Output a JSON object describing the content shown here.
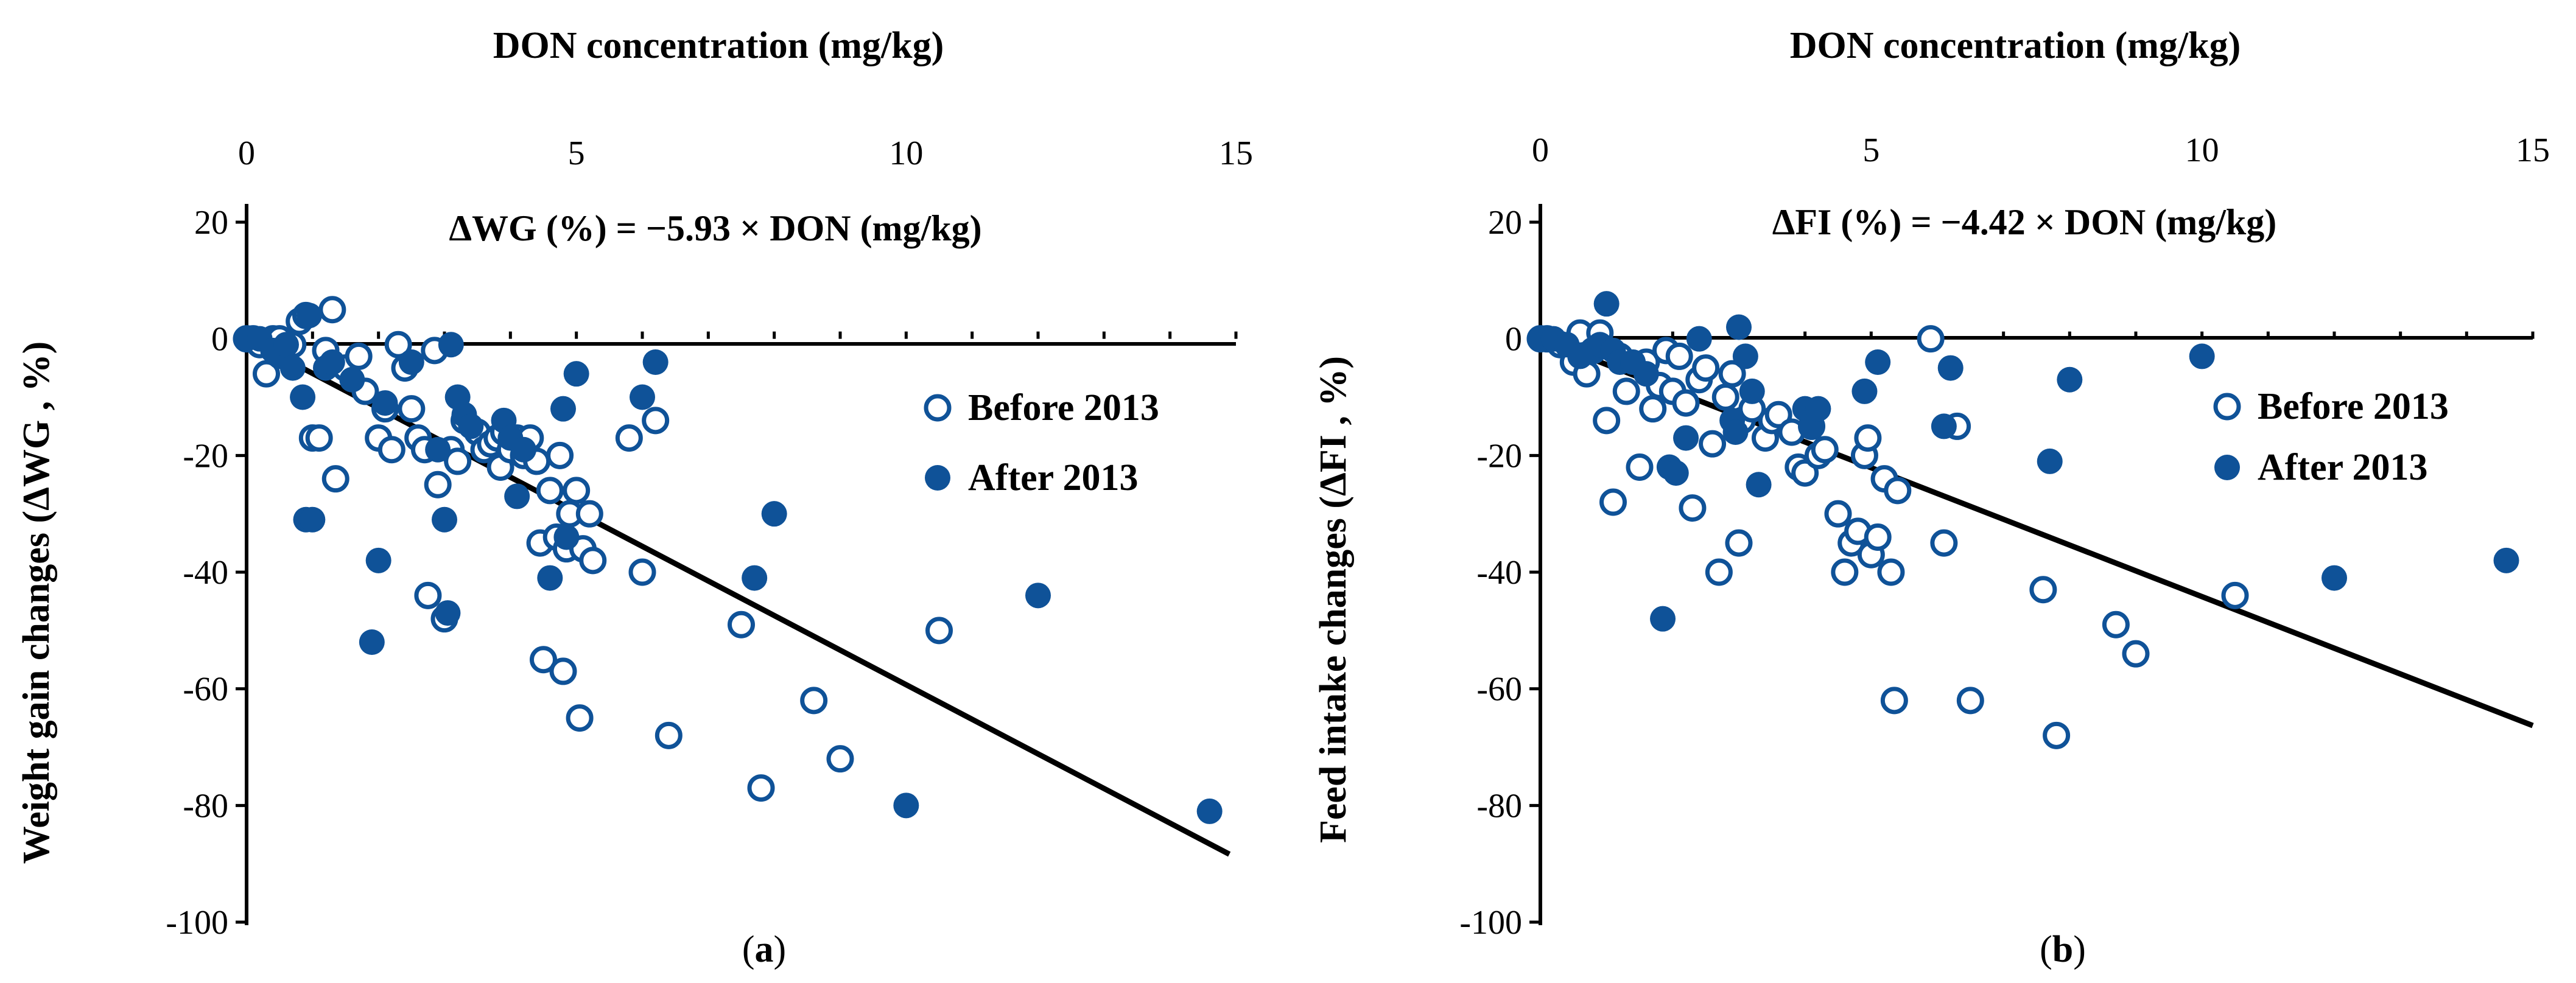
{
  "colors": {
    "marker": "#0F5298",
    "axis": "#000000",
    "background": "#ffffff"
  },
  "chart_data": [
    {
      "id": "a",
      "type": "scatter",
      "title": "DON concentration (mg/kg)",
      "xlabel": "DON concentration (mg/kg)",
      "ylabel": "Weight gain changes (ΔWG , %)",
      "equation": "ΔWG (%) = −5.93 × DON (mg/kg)",
      "slope": -5.93,
      "panel_label": {
        "open": "(",
        "letter": "a",
        "close": ")"
      },
      "xlim": [
        0,
        15
      ],
      "ylim": [
        -100,
        20
      ],
      "x_ticks": [
        "0",
        "5",
        "10",
        "15"
      ],
      "y_ticks": [
        "20",
        "0",
        "-20",
        "-40",
        "-60",
        "-80",
        "-100"
      ],
      "legend": [
        "Before 2013",
        "After 2013"
      ],
      "series": [
        {
          "name": "Before 2013",
          "marker": "open-circle",
          "points": [
            [
              0,
              0
            ],
            [
              0.1,
              0
            ],
            [
              0.2,
              -1
            ],
            [
              0.3,
              -6
            ],
            [
              0.4,
              0
            ],
            [
              0.5,
              0
            ],
            [
              0.6,
              -2
            ],
            [
              0.7,
              -1
            ],
            [
              0.8,
              3
            ],
            [
              0.9,
              4
            ],
            [
              1.0,
              -17
            ],
            [
              1.1,
              -17
            ],
            [
              1.2,
              -2
            ],
            [
              1.3,
              5
            ],
            [
              1.35,
              -24
            ],
            [
              1.5,
              -5
            ],
            [
              1.7,
              -3
            ],
            [
              1.8,
              -9
            ],
            [
              2.0,
              -17
            ],
            [
              2.1,
              -12
            ],
            [
              2.2,
              -19
            ],
            [
              2.3,
              -1
            ],
            [
              2.4,
              -5
            ],
            [
              2.5,
              -12
            ],
            [
              2.6,
              -17
            ],
            [
              2.7,
              -19
            ],
            [
              2.75,
              -44
            ],
            [
              2.85,
              -2
            ],
            [
              2.9,
              -25
            ],
            [
              3.0,
              -48
            ],
            [
              3.1,
              -19
            ],
            [
              3.2,
              -21
            ],
            [
              3.3,
              -14
            ],
            [
              3.5,
              -16
            ],
            [
              3.6,
              -19
            ],
            [
              3.7,
              -18
            ],
            [
              3.8,
              -17
            ],
            [
              3.85,
              -22
            ],
            [
              3.9,
              -16
            ],
            [
              4.0,
              -19
            ],
            [
              4.1,
              -17
            ],
            [
              4.2,
              -20
            ],
            [
              4.3,
              -17
            ],
            [
              4.4,
              -21
            ],
            [
              4.45,
              -35
            ],
            [
              4.5,
              -55
            ],
            [
              4.6,
              -26
            ],
            [
              4.7,
              -34
            ],
            [
              4.75,
              -20
            ],
            [
              4.8,
              -57
            ],
            [
              4.85,
              -36
            ],
            [
              4.9,
              -30
            ],
            [
              5.0,
              -26
            ],
            [
              5.05,
              -65
            ],
            [
              5.1,
              -36
            ],
            [
              5.2,
              -30
            ],
            [
              5.25,
              -38
            ],
            [
              5.8,
              -17
            ],
            [
              6.0,
              -40
            ],
            [
              6.2,
              -14
            ],
            [
              6.4,
              -68
            ],
            [
              7.5,
              -49
            ],
            [
              7.8,
              -77
            ],
            [
              8.6,
              -62
            ],
            [
              9.0,
              -72
            ],
            [
              10.5,
              -50
            ]
          ]
        },
        {
          "name": "After 2013",
          "marker": "filled-circle",
          "points": [
            [
              0,
              0
            ],
            [
              0.2,
              0
            ],
            [
              0.4,
              -2
            ],
            [
              0.5,
              -3
            ],
            [
              0.6,
              -1
            ],
            [
              0.7,
              -5
            ],
            [
              0.85,
              -10
            ],
            [
              0.9,
              -31
            ],
            [
              0.95,
              4
            ],
            [
              1.0,
              -31
            ],
            [
              1.2,
              -5
            ],
            [
              1.3,
              -4
            ],
            [
              1.6,
              -7
            ],
            [
              1.9,
              -52
            ],
            [
              2.0,
              -38
            ],
            [
              2.1,
              -11
            ],
            [
              2.5,
              -4
            ],
            [
              2.9,
              -19
            ],
            [
              3.0,
              -31
            ],
            [
              3.05,
              -47
            ],
            [
              3.1,
              -1
            ],
            [
              3.2,
              -10
            ],
            [
              3.3,
              -13
            ],
            [
              3.4,
              -15
            ],
            [
              3.9,
              -14
            ],
            [
              4.0,
              -17
            ],
            [
              4.1,
              -27
            ],
            [
              4.2,
              -19
            ],
            [
              4.6,
              -41
            ],
            [
              4.8,
              -12
            ],
            [
              4.85,
              -34
            ],
            [
              5.0,
              -6
            ],
            [
              6.0,
              -10
            ],
            [
              6.2,
              -4
            ],
            [
              7.7,
              -41
            ],
            [
              8.0,
              -30
            ],
            [
              10.0,
              -80
            ],
            [
              12.0,
              -44
            ],
            [
              14.6,
              -81
            ]
          ]
        }
      ]
    },
    {
      "id": "b",
      "type": "scatter",
      "title": "DON concentration (mg/kg)",
      "xlabel": "DON concentration (mg/kg)",
      "ylabel": "Feed intake changes (ΔFI , %)",
      "equation": "ΔFI (%) = −4.42 × DON (mg/kg)",
      "slope": -4.42,
      "panel_label": {
        "open": "(",
        "letter": "b",
        "close": ")"
      },
      "xlim": [
        0,
        15
      ],
      "ylim": [
        -100,
        20
      ],
      "x_ticks": [
        "0",
        "5",
        "10",
        "15"
      ],
      "y_ticks": [
        "20",
        "0",
        "-20",
        "-40",
        "-60",
        "-80",
        "-100"
      ],
      "legend": [
        "Before 2013",
        "After 2013"
      ],
      "series": [
        {
          "name": "Before 2013",
          "marker": "open-circle",
          "points": [
            [
              0,
              0
            ],
            [
              0.1,
              0
            ],
            [
              0.3,
              -1
            ],
            [
              0.5,
              -4
            ],
            [
              0.6,
              1
            ],
            [
              0.7,
              -6
            ],
            [
              0.8,
              -2
            ],
            [
              0.9,
              1
            ],
            [
              1.0,
              -14
            ],
            [
              1.1,
              -28
            ],
            [
              1.2,
              -3
            ],
            [
              1.3,
              -9
            ],
            [
              1.5,
              -22
            ],
            [
              1.6,
              -4
            ],
            [
              1.7,
              -12
            ],
            [
              1.8,
              -8
            ],
            [
              1.9,
              -2
            ],
            [
              2.0,
              -9
            ],
            [
              2.1,
              -3
            ],
            [
              2.2,
              -11
            ],
            [
              2.3,
              -29
            ],
            [
              2.4,
              -7
            ],
            [
              2.5,
              -5
            ],
            [
              2.6,
              -18
            ],
            [
              2.7,
              -40
            ],
            [
              2.8,
              -10
            ],
            [
              2.9,
              -6
            ],
            [
              3.0,
              -35
            ],
            [
              3.05,
              -14
            ],
            [
              3.2,
              -12
            ],
            [
              3.4,
              -17
            ],
            [
              3.5,
              -14
            ],
            [
              3.6,
              -13
            ],
            [
              3.8,
              -16
            ],
            [
              3.9,
              -22
            ],
            [
              4.0,
              -23
            ],
            [
              4.1,
              -15
            ],
            [
              4.2,
              -20
            ],
            [
              4.3,
              -19
            ],
            [
              4.5,
              -30
            ],
            [
              4.6,
              -40
            ],
            [
              4.7,
              -35
            ],
            [
              4.8,
              -33
            ],
            [
              4.9,
              -20
            ],
            [
              4.95,
              -17
            ],
            [
              5.0,
              -37
            ],
            [
              5.1,
              -34
            ],
            [
              5.2,
              -24
            ],
            [
              5.3,
              -40
            ],
            [
              5.35,
              -62
            ],
            [
              5.4,
              -26
            ],
            [
              5.9,
              0
            ],
            [
              6.1,
              -35
            ],
            [
              6.3,
              -15
            ],
            [
              6.5,
              -62
            ],
            [
              7.6,
              -43
            ],
            [
              7.8,
              -68
            ],
            [
              8.7,
              -49
            ],
            [
              9.0,
              -54
            ],
            [
              10.5,
              -44
            ]
          ]
        },
        {
          "name": "After 2013",
          "marker": "filled-circle",
          "points": [
            [
              0,
              0
            ],
            [
              0.2,
              0
            ],
            [
              0.4,
              -1
            ],
            [
              0.6,
              -3
            ],
            [
              0.8,
              -2
            ],
            [
              0.9,
              -1
            ],
            [
              1.0,
              6
            ],
            [
              1.1,
              -2
            ],
            [
              1.2,
              -4
            ],
            [
              1.4,
              -4
            ],
            [
              1.6,
              -6
            ],
            [
              1.85,
              -48
            ],
            [
              1.95,
              -22
            ],
            [
              2.05,
              -23
            ],
            [
              2.2,
              -17
            ],
            [
              2.4,
              0
            ],
            [
              2.9,
              -14
            ],
            [
              2.95,
              -16
            ],
            [
              3.0,
              2
            ],
            [
              3.1,
              -3
            ],
            [
              3.2,
              -9
            ],
            [
              3.3,
              -25
            ],
            [
              4.0,
              -12
            ],
            [
              4.1,
              -15
            ],
            [
              4.2,
              -12
            ],
            [
              4.9,
              -9
            ],
            [
              5.1,
              -4
            ],
            [
              6.1,
              -15
            ],
            [
              6.2,
              -5
            ],
            [
              7.7,
              -21
            ],
            [
              8.0,
              -7
            ],
            [
              10.0,
              -3
            ],
            [
              12.0,
              -41
            ],
            [
              14.6,
              -38
            ]
          ]
        }
      ]
    }
  ]
}
